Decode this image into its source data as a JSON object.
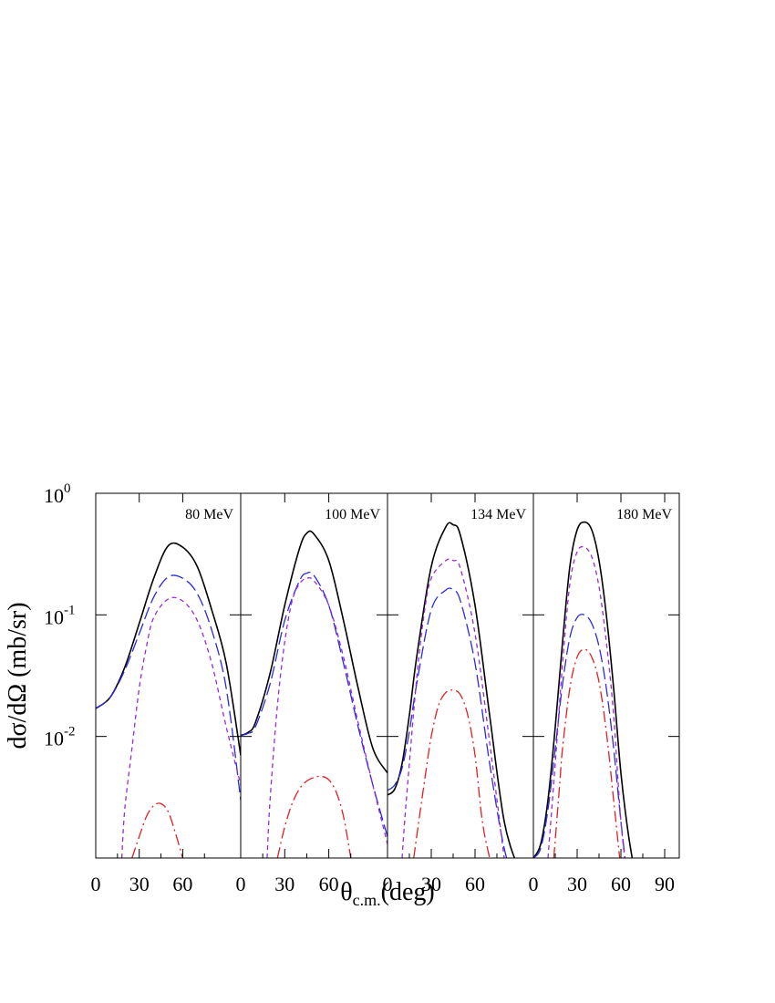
{
  "chart_data": {
    "type": "line",
    "xlabel": "θ",
    "xlabel_sub": "c.m.",
    "xlabel_suffix": "(deg)",
    "ylabel": "dσ/dΩ (mb/sr)",
    "yscale": "log",
    "ylim": [
      0.001,
      1
    ],
    "y_tick_labels": [
      {
        "base": "10",
        "exp": "0",
        "value": 1
      },
      {
        "base": "10",
        "exp": "-1",
        "value": 0.1
      },
      {
        "base": "10",
        "exp": "-2",
        "value": 0.01
      }
    ],
    "grid": false,
    "series_styles": [
      {
        "color": "#000000",
        "dash": ""
      },
      {
        "color": "#2a2ae0",
        "dash": "14,5"
      },
      {
        "color": "#9a2ad8",
        "dash": "5,4"
      },
      {
        "color": "#e02020",
        "dash": "12,4,2,4"
      }
    ],
    "panels": [
      {
        "label": "80 MeV",
        "xlim": [
          0,
          100
        ],
        "x_ticks": [
          0,
          30,
          60
        ],
        "series": [
          {
            "x": [
              0,
              10,
              20,
              30,
              40,
              50,
              60,
              70,
              80,
              90,
              100
            ],
            "y": [
              0.017,
              0.021,
              0.037,
              0.085,
              0.2,
              0.37,
              0.36,
              0.25,
              0.11,
              0.04,
              0.007
            ]
          },
          {
            "x": [
              0,
              10,
              20,
              30,
              40,
              50,
              60,
              70,
              80,
              90,
              100
            ],
            "y": [
              0.017,
              0.021,
              0.035,
              0.07,
              0.14,
              0.205,
              0.2,
              0.15,
              0.075,
              0.025,
              0.003
            ]
          },
          {
            "x": [
              18,
              20,
              25,
              30,
              35,
              40,
              50,
              60,
              70,
              80,
              90,
              100
            ],
            "y": [
              0.001,
              0.0025,
              0.008,
              0.025,
              0.055,
              0.095,
              0.135,
              0.13,
              0.09,
              0.04,
              0.012,
              0.004
            ]
          },
          {
            "x": [
              25,
              30,
              35,
              40,
              45,
              50,
              55,
              60
            ],
            "y": [
              0.001,
              0.0015,
              0.0022,
              0.0027,
              0.0028,
              0.0024,
              0.0016,
              0.001
            ]
          }
        ]
      },
      {
        "label": "100 MeV",
        "xlim": [
          0,
          100
        ],
        "x_ticks": [
          0,
          30,
          60
        ],
        "series": [
          {
            "x": [
              0,
              5,
              10,
              20,
              30,
              40,
              45,
              50,
              60,
              70,
              80,
              90,
              100
            ],
            "y": [
              0.0102,
              0.0108,
              0.013,
              0.033,
              0.12,
              0.35,
              0.47,
              0.46,
              0.28,
              0.09,
              0.025,
              0.008,
              0.005
            ]
          },
          {
            "x": [
              0,
              5,
              10,
              20,
              30,
              40,
              45,
              50,
              60,
              70,
              80,
              90,
              100
            ],
            "y": [
              0.0102,
              0.0106,
              0.012,
              0.027,
              0.09,
              0.19,
              0.22,
              0.21,
              0.12,
              0.04,
              0.012,
              0.004,
              0.0015
            ]
          },
          {
            "x": [
              18,
              20,
              25,
              30,
              35,
              40,
              45,
              50,
              60,
              70,
              80,
              90,
              100
            ],
            "y": [
              0.001,
              0.003,
              0.018,
              0.06,
              0.13,
              0.18,
              0.2,
              0.19,
              0.12,
              0.045,
              0.013,
              0.004,
              0.0013
            ]
          },
          {
            "x": [
              25,
              30,
              35,
              40,
              45,
              50,
              55,
              60,
              65,
              70,
              75
            ],
            "y": [
              0.001,
              0.0018,
              0.0028,
              0.0037,
              0.0043,
              0.0046,
              0.0047,
              0.0044,
              0.0035,
              0.0022,
              0.001
            ]
          }
        ]
      },
      {
        "label": "134 MeV",
        "xlim": [
          0,
          100
        ],
        "x_ticks": [
          0,
          30,
          60
        ],
        "series": [
          {
            "x": [
              0,
              5,
              10,
              15,
              20,
              30,
              40,
              45,
              50,
              60,
              70,
              80,
              90
            ],
            "y": [
              0.0033,
              0.0037,
              0.006,
              0.015,
              0.045,
              0.25,
              0.53,
              0.55,
              0.45,
              0.12,
              0.015,
              0.002,
              0.0008
            ]
          },
          {
            "x": [
              0,
              5,
              10,
              15,
              20,
              30,
              40,
              45,
              50,
              60,
              70,
              80,
              90
            ],
            "y": [
              0.0036,
              0.004,
              0.0055,
              0.011,
              0.027,
              0.11,
              0.16,
              0.16,
              0.13,
              0.04,
              0.006,
              0.0012,
              0.0005
            ]
          },
          {
            "x": [
              10,
              12,
              15,
              20,
              25,
              30,
              40,
              45,
              50,
              60,
              70,
              80
            ],
            "y": [
              0.001,
              0.0022,
              0.006,
              0.03,
              0.1,
              0.2,
              0.28,
              0.28,
              0.24,
              0.07,
              0.009,
              0.001
            ]
          },
          {
            "x": [
              18,
              20,
              25,
              30,
              35,
              40,
              45,
              50,
              55,
              60,
              65,
              70
            ],
            "y": [
              0.001,
              0.0015,
              0.004,
              0.01,
              0.018,
              0.023,
              0.024,
              0.022,
              0.015,
              0.007,
              0.002,
              0.001
            ]
          }
        ]
      },
      {
        "label": "180 MeV",
        "xlim": [
          0,
          100
        ],
        "x_ticks": [
          0,
          30,
          60,
          90
        ],
        "series": [
          {
            "x": [
              0,
              5,
              10,
              15,
              20,
              25,
              30,
              35,
              40,
              45,
              50,
              55,
              60,
              65,
              70
            ],
            "y": [
              0.001,
              0.0013,
              0.003,
              0.012,
              0.06,
              0.25,
              0.5,
              0.58,
              0.5,
              0.28,
              0.1,
              0.025,
              0.005,
              0.0016,
              0.0007
            ]
          },
          {
            "x": [
              0,
              5,
              10,
              15,
              20,
              25,
              30,
              35,
              40,
              45,
              50,
              55,
              60,
              65
            ],
            "y": [
              0.001,
              0.0012,
              0.0025,
              0.008,
              0.027,
              0.065,
              0.095,
              0.1,
              0.085,
              0.055,
              0.025,
              0.008,
              0.002,
              0.0006
            ]
          },
          {
            "x": [
              10,
              15,
              20,
              25,
              30,
              35,
              40,
              45,
              50,
              55,
              60,
              65
            ],
            "y": [
              0.001,
              0.006,
              0.04,
              0.18,
              0.33,
              0.36,
              0.3,
              0.17,
              0.06,
              0.015,
              0.002,
              0.0006
            ]
          },
          {
            "x": [
              14,
              18,
              20,
              25,
              30,
              35,
              40,
              45,
              50,
              55,
              60
            ],
            "y": [
              0.001,
              0.004,
              0.008,
              0.025,
              0.045,
              0.052,
              0.045,
              0.028,
              0.011,
              0.003,
              0.0008
            ]
          }
        ]
      }
    ]
  }
}
